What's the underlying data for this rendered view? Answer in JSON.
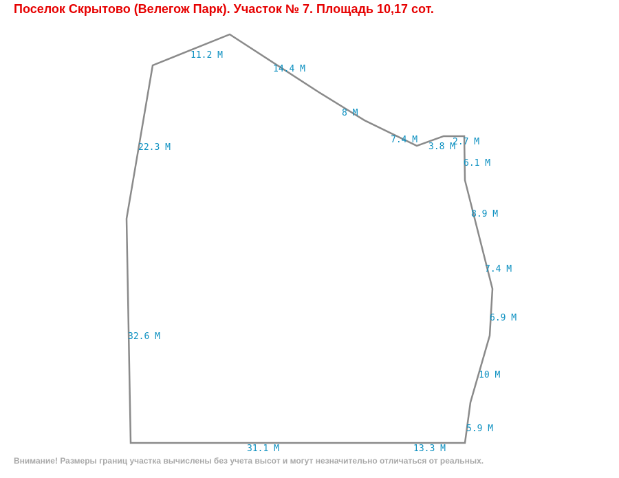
{
  "title": "Поселок Скрытово (Велегож Парк). Участок № 7. Площадь 10,17 сот.",
  "note": "Внимание! Размеры границ участка вычислены без учета высот и могут незначительно отличаться от реальных.",
  "plot": {
    "outline_color": "#8a8a8a",
    "label_color": "#0a8fc0",
    "title_color": "#e60000",
    "edges": [
      {
        "label": "11.2 М"
      },
      {
        "label": "14.4 М"
      },
      {
        "label": "8 М"
      },
      {
        "label": "7.4 М"
      },
      {
        "label": "3.8 М"
      },
      {
        "label": "2.7 М"
      },
      {
        "label": "6.1 М"
      },
      {
        "label": "8.9 М"
      },
      {
        "label": "7.4 М"
      },
      {
        "label": "6.9 М"
      },
      {
        "label": "10 М"
      },
      {
        "label": "5.9 М"
      },
      {
        "label": "13.3 М"
      },
      {
        "label": "31.1 М"
      },
      {
        "label": "32.6 М"
      },
      {
        "label": "22.3 М"
      }
    ]
  }
}
